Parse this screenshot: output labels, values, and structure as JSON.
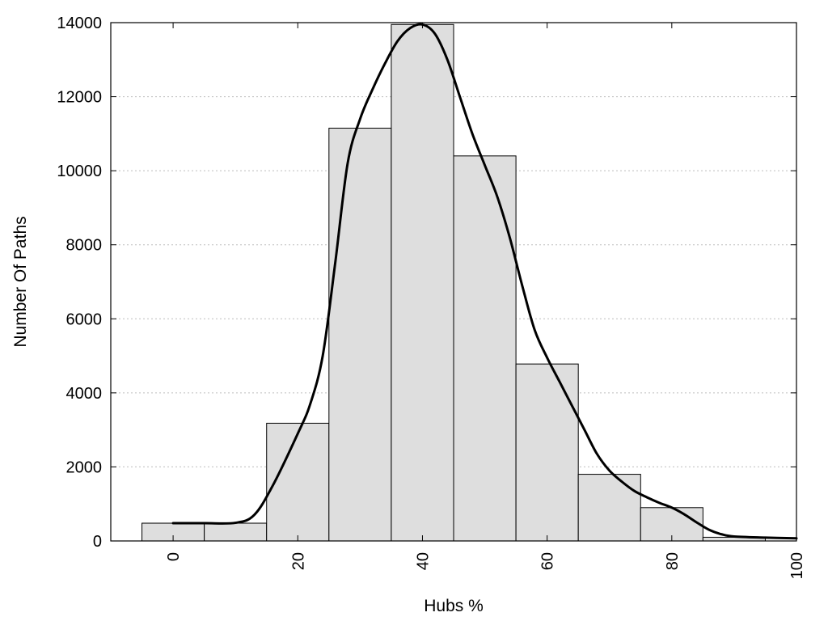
{
  "chart_data": {
    "type": "bar",
    "xlabel": "Hubs %",
    "ylabel": "Number Of Paths",
    "xlim": [
      -10,
      100
    ],
    "ylim": [
      0,
      14000
    ],
    "x_ticks": [
      0,
      20,
      40,
      60,
      80,
      100
    ],
    "y_ticks": [
      0,
      2000,
      4000,
      6000,
      8000,
      10000,
      12000,
      14000
    ],
    "grid": "horizontal dotted",
    "bar_color": "#dedede",
    "line_color": "#000000",
    "bin_width": 10,
    "bins": [
      {
        "center": 0,
        "value": 480
      },
      {
        "center": 10,
        "value": 480
      },
      {
        "center": 20,
        "value": 3180
      },
      {
        "center": 30,
        "value": 11150
      },
      {
        "center": 40,
        "value": 13950
      },
      {
        "center": 50,
        "value": 10400
      },
      {
        "center": 60,
        "value": 4780
      },
      {
        "center": 70,
        "value": 1800
      },
      {
        "center": 80,
        "value": 900
      },
      {
        "center": 90,
        "value": 100
      }
    ],
    "series": [
      {
        "type": "line",
        "x": [
          0,
          5,
          10,
          13,
          16,
          20,
          22,
          24,
          26,
          28,
          30,
          32,
          34,
          36,
          38,
          40,
          42,
          44,
          46,
          48,
          50,
          52,
          54,
          56,
          58,
          60,
          62,
          64,
          66,
          68,
          70,
          72,
          74,
          76,
          78,
          80,
          82,
          84,
          86,
          88,
          90,
          95,
          100
        ],
        "y": [
          480,
          480,
          490,
          700,
          1500,
          2900,
          3700,
          5000,
          7500,
          10200,
          11400,
          12200,
          12900,
          13500,
          13850,
          13950,
          13700,
          13000,
          12000,
          11000,
          10150,
          9300,
          8200,
          6900,
          5700,
          4950,
          4300,
          3650,
          3000,
          2350,
          1900,
          1600,
          1350,
          1180,
          1030,
          900,
          720,
          500,
          300,
          180,
          120,
          90,
          70
        ]
      }
    ]
  }
}
